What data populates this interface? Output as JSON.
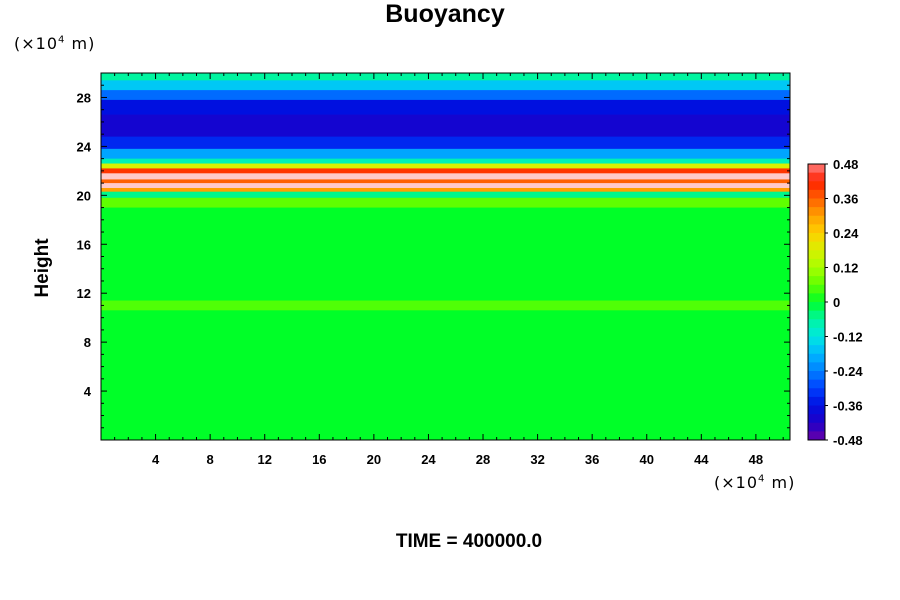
{
  "chart_data": {
    "type": "heatmap",
    "title": "Buoyancy",
    "ylabel": "Height",
    "x_unit_pre": "(×10",
    "x_unit_exp": "4",
    "x_unit_post": " m)",
    "y_unit_pre": "(×10",
    "y_unit_exp": "4",
    "y_unit_post": " m)",
    "footer": "TIME = 400000.0",
    "xlim": [
      0,
      50.5
    ],
    "ylim": [
      0,
      30
    ],
    "x_ticks": [
      4,
      8,
      12,
      16,
      20,
      24,
      28,
      32,
      36,
      40,
      44,
      48
    ],
    "y_ticks": [
      4,
      8,
      12,
      16,
      20,
      24,
      28
    ],
    "colorbar": {
      "min": -0.48,
      "max": 0.48,
      "labels": [
        "0.48",
        "0.36",
        "0.24",
        "0.12",
        "0",
        "-0.12",
        "-0.24",
        "-0.36",
        "-0.48"
      ],
      "label_values": [
        0.48,
        0.36,
        0.24,
        0.12,
        0,
        -0.12,
        -0.24,
        -0.36,
        -0.48
      ]
    },
    "bands": [
      {
        "y0": 29.4,
        "y1": 30,
        "value": -0.06
      },
      {
        "y0": 28.6,
        "y1": 29.4,
        "value": -0.16
      },
      {
        "y0": 27.8,
        "y1": 28.6,
        "value": -0.26
      },
      {
        "y0": 26.6,
        "y1": 27.8,
        "value": -0.36
      },
      {
        "y0": 24.8,
        "y1": 26.6,
        "value": -0.4
      },
      {
        "y0": 23.8,
        "y1": 24.8,
        "value": -0.33
      },
      {
        "y0": 23.0,
        "y1": 23.8,
        "value": -0.2
      },
      {
        "y0": 22.6,
        "y1": 23.0,
        "value": -0.08
      },
      {
        "y0": 22.2,
        "y1": 22.6,
        "value": 0.18
      },
      {
        "y0": 21.8,
        "y1": 22.2,
        "value": 0.4
      },
      {
        "y0": 21.3,
        "y1": 21.8,
        "value": 0.55
      },
      {
        "y0": 21.0,
        "y1": 21.3,
        "value": 0.36
      },
      {
        "y0": 20.6,
        "y1": 21.0,
        "value": 0.55
      },
      {
        "y0": 20.3,
        "y1": 20.6,
        "value": 0.3
      },
      {
        "y0": 19.8,
        "y1": 20.3,
        "value": -0.05
      },
      {
        "y0": 19.0,
        "y1": 19.8,
        "value": 0.06
      },
      {
        "y0": 11.4,
        "y1": 19.0,
        "value": 0.0
      },
      {
        "y0": 10.6,
        "y1": 11.4,
        "value": 0.05
      },
      {
        "y0": 0,
        "y1": 10.6,
        "value": 0.0
      }
    ]
  }
}
